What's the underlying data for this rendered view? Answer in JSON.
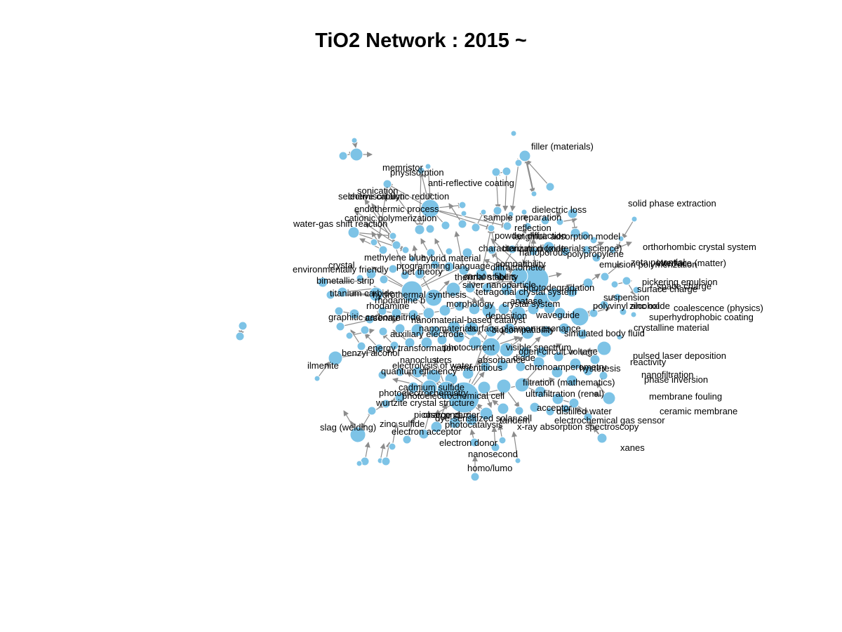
{
  "title": "TiO2 Network : 2015 ~",
  "style": {
    "node_fill": "#7dc3e6",
    "node_stroke": "#ffffff",
    "edge_color": "#8c8c8c"
  },
  "labels": [
    "filler (materials)",
    "memristor",
    "physisorption",
    "anti-reflective coating",
    "sonication",
    "selective catalytic reduction",
    "chemisorption",
    "endothermic process",
    "cationic polymerization",
    "water-gas shift reaction",
    "dielectric loss",
    "solid phase extraction",
    "sample preparation",
    "reflection",
    "langmuir adsorption model",
    "powder diffraction",
    "characterization (materials science)",
    "titanium dioxide",
    "nanoporous",
    "polypropylene",
    "orthorhombic crystal system",
    "interface (matter)",
    "methylene blue",
    "hybrid material",
    "crystal",
    "programming language",
    "diffractometer",
    "zeta potential",
    "emulsion polymerization",
    "environmentally friendly",
    "bet theory",
    "compatibility",
    "pickering emulsion",
    "suspension",
    "space charge",
    "bimetallic strip",
    "thermal stability",
    "carbon fibers",
    "surface charge",
    "titanium carbide",
    "silver nanoparticle",
    "photodegradation",
    "hydrothermal synthesis",
    "tetragonal crystal system",
    "coalescence (physics)",
    "zinc oxide",
    "polyvinyl alcohol",
    "rhodamine b",
    "morphology",
    "crystal system",
    "rhodamine",
    "anatase",
    "superhydrophobic coating",
    "graphitic carbon nitride",
    "arsenate",
    "nanomaterial-based catalyst",
    "waveguide",
    "crystalline material",
    "auxiliary electrode",
    "deposition",
    "nanomaterials",
    "surface plasmon resonance",
    "biocompatibility",
    "simulated body fluid",
    "energy transformation",
    "photocurrent",
    "visible spectrum",
    "open-circuit voltage",
    "pulsed laser deposition",
    "reactivity",
    "benzyl alcohol",
    "nanoclusters",
    "absorbance",
    "diode",
    "hysteresis",
    "electrolysis of water",
    "cementitious",
    "chronoamperometry",
    "nanofiltration",
    "ilmenite",
    "quantum efficiency",
    "phase inversion",
    "cadmium sulfide",
    "filtration (mathematics)",
    "membrane fouling",
    "photoelectrochemistry",
    "ultrafiltration (renal)",
    "photoelectrochemical cell",
    "wurtzite crystal structure",
    "ceramic membrane",
    "picosecond",
    "charge carrier",
    "acceptor",
    "distilled water",
    "electrochemical gas sensor",
    "slag (welding)",
    "zinc sulfide",
    "dye-sensitized solar cell",
    "photocatalysis",
    "tandem",
    "x-ray absorption spectroscopy",
    "electron acceptor",
    "xanes",
    "electron donor",
    "nanosecond",
    "homo/lumo"
  ]
}
